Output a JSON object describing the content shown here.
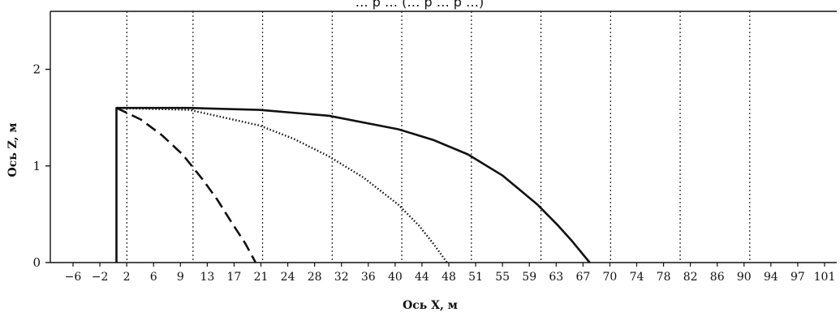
{
  "chart_data": {
    "type": "line",
    "title": "… р … (… р … р …)",
    "xlabel": "Ось X, м",
    "ylabel": "Ось Z, м",
    "xlim": [
      -10,
      103
    ],
    "ylim": [
      0,
      2.6
    ],
    "x_ticks": [
      "-6",
      "-2",
      "2",
      "6",
      "9",
      "13",
      "17",
      "21",
      "24",
      "28",
      "32",
      "36",
      "40",
      "44",
      "48",
      "51",
      "55",
      "59",
      "63",
      "67",
      "70",
      "74",
      "78",
      "82",
      "86",
      "90",
      "94",
      "97",
      "101"
    ],
    "y_ticks": [
      0,
      1,
      2
    ],
    "grid_x_lines": [
      1,
      10.5,
      20.5,
      30.5,
      40.5,
      50.5,
      60.5,
      70.5,
      80.5,
      90.5
    ],
    "grid": "vertical-dotted",
    "series": [
      {
        "style": "solid",
        "x": [
          -0.5,
          -0.5,
          10,
          20,
          30,
          40,
          45,
          50,
          55,
          60,
          63,
          65,
          67.5
        ],
        "y": [
          0,
          1.6,
          1.6,
          1.58,
          1.52,
          1.38,
          1.27,
          1.12,
          0.9,
          0.6,
          0.38,
          0.22,
          0
        ]
      },
      {
        "style": "dotted",
        "x": [
          -0.5,
          10,
          20,
          25,
          30,
          35,
          40,
          43,
          45,
          47
        ],
        "y": [
          1.6,
          1.58,
          1.42,
          1.28,
          1.1,
          0.88,
          0.6,
          0.38,
          0.2,
          0
        ]
      },
      {
        "style": "dashed",
        "x": [
          -0.5,
          3,
          6,
          9,
          12,
          14,
          16,
          18,
          19.5
        ],
        "y": [
          1.6,
          1.48,
          1.32,
          1.12,
          0.85,
          0.65,
          0.42,
          0.2,
          0
        ]
      }
    ]
  }
}
